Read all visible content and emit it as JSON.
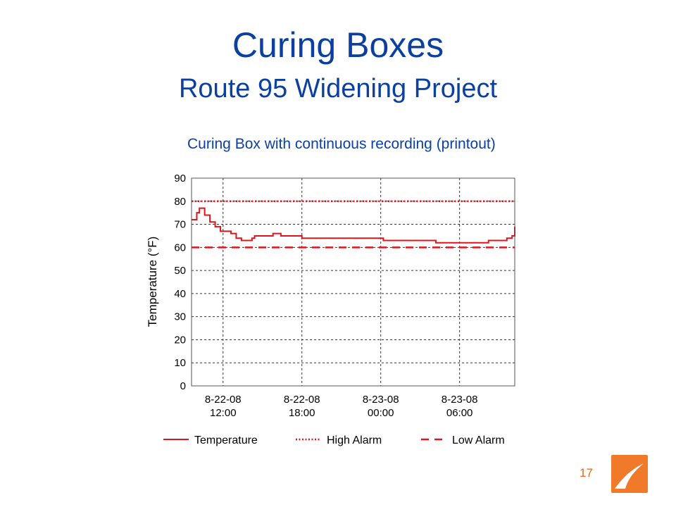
{
  "slide": {
    "title": "Curing Boxes",
    "subtitle": "Route 95 Widening Project",
    "caption": "Curing Box with continuous recording (printout)",
    "page_number": "17"
  },
  "colors": {
    "title": "#0b3fa0",
    "series": "#e0141b",
    "page_number": "#e06b20",
    "logo": "#f07a2a"
  },
  "logo_icon": "orange-swoosh-logo-icon",
  "chart_data": {
    "type": "line",
    "ylabel": "Temperature (°F)",
    "xlabel": "",
    "ylim": [
      0,
      90
    ],
    "yticks": [
      "0",
      "10",
      "20",
      "30",
      "40",
      "50",
      "60",
      "70",
      "80",
      "90"
    ],
    "xlim": [
      "8-22-08 09:36",
      "8-23-08 10:12"
    ],
    "xticks": [
      {
        "date": "8-22-08",
        "time": "12:00",
        "at": "8-22-08 12:00"
      },
      {
        "date": "8-22-08",
        "time": "18:00",
        "at": "8-22-08 18:00"
      },
      {
        "date": "8-23-08",
        "time": "00:00",
        "at": "8-23-08 00:00"
      },
      {
        "date": "8-23-08",
        "time": "06:00",
        "at": "8-23-08 06:00"
      }
    ],
    "grid": true,
    "legend_position": "bottom",
    "series": [
      {
        "name": "Temperature",
        "style": "solid",
        "x": [
          "8-22-08 09:36",
          "8-22-08 10:00",
          "8-22-08 10:12",
          "8-22-08 10:24",
          "8-22-08 10:36",
          "8-22-08 11:00",
          "8-22-08 11:24",
          "8-22-08 11:48",
          "8-22-08 12:12",
          "8-22-08 12:36",
          "8-22-08 13:00",
          "8-22-08 13:24",
          "8-22-08 13:48",
          "8-22-08 14:12",
          "8-22-08 14:24",
          "8-22-08 15:00",
          "8-22-08 15:24",
          "8-22-08 15:48",
          "8-22-08 16:12",
          "8-22-08 16:24",
          "8-22-08 17:00",
          "8-22-08 18:00",
          "8-22-08 20:00",
          "8-22-08 22:00",
          "8-23-08 00:00",
          "8-23-08 00:12",
          "8-23-08 02:00",
          "8-23-08 04:00",
          "8-23-08 04:12",
          "8-23-08 06:00",
          "8-23-08 08:00",
          "8-23-08 08:12",
          "8-23-08 09:00",
          "8-23-08 09:36",
          "8-23-08 10:00",
          "8-23-08 10:12"
        ],
        "values": [
          72,
          75,
          77,
          77,
          74,
          71,
          69,
          67,
          67,
          66,
          64,
          63,
          63,
          64,
          65,
          65,
          65,
          66,
          66,
          65,
          65,
          64,
          64,
          64,
          64,
          63,
          63,
          63,
          62,
          62,
          62,
          63,
          63,
          64,
          65,
          69
        ]
      },
      {
        "name": "High Alarm",
        "style": "dotted",
        "x": [
          "8-22-08 09:36",
          "8-23-08 10:12"
        ],
        "values": [
          80,
          80
        ]
      },
      {
        "name": "Low Alarm",
        "style": "dashed",
        "x": [
          "8-22-08 09:36",
          "8-23-08 10:12"
        ],
        "values": [
          60,
          60
        ]
      }
    ]
  }
}
